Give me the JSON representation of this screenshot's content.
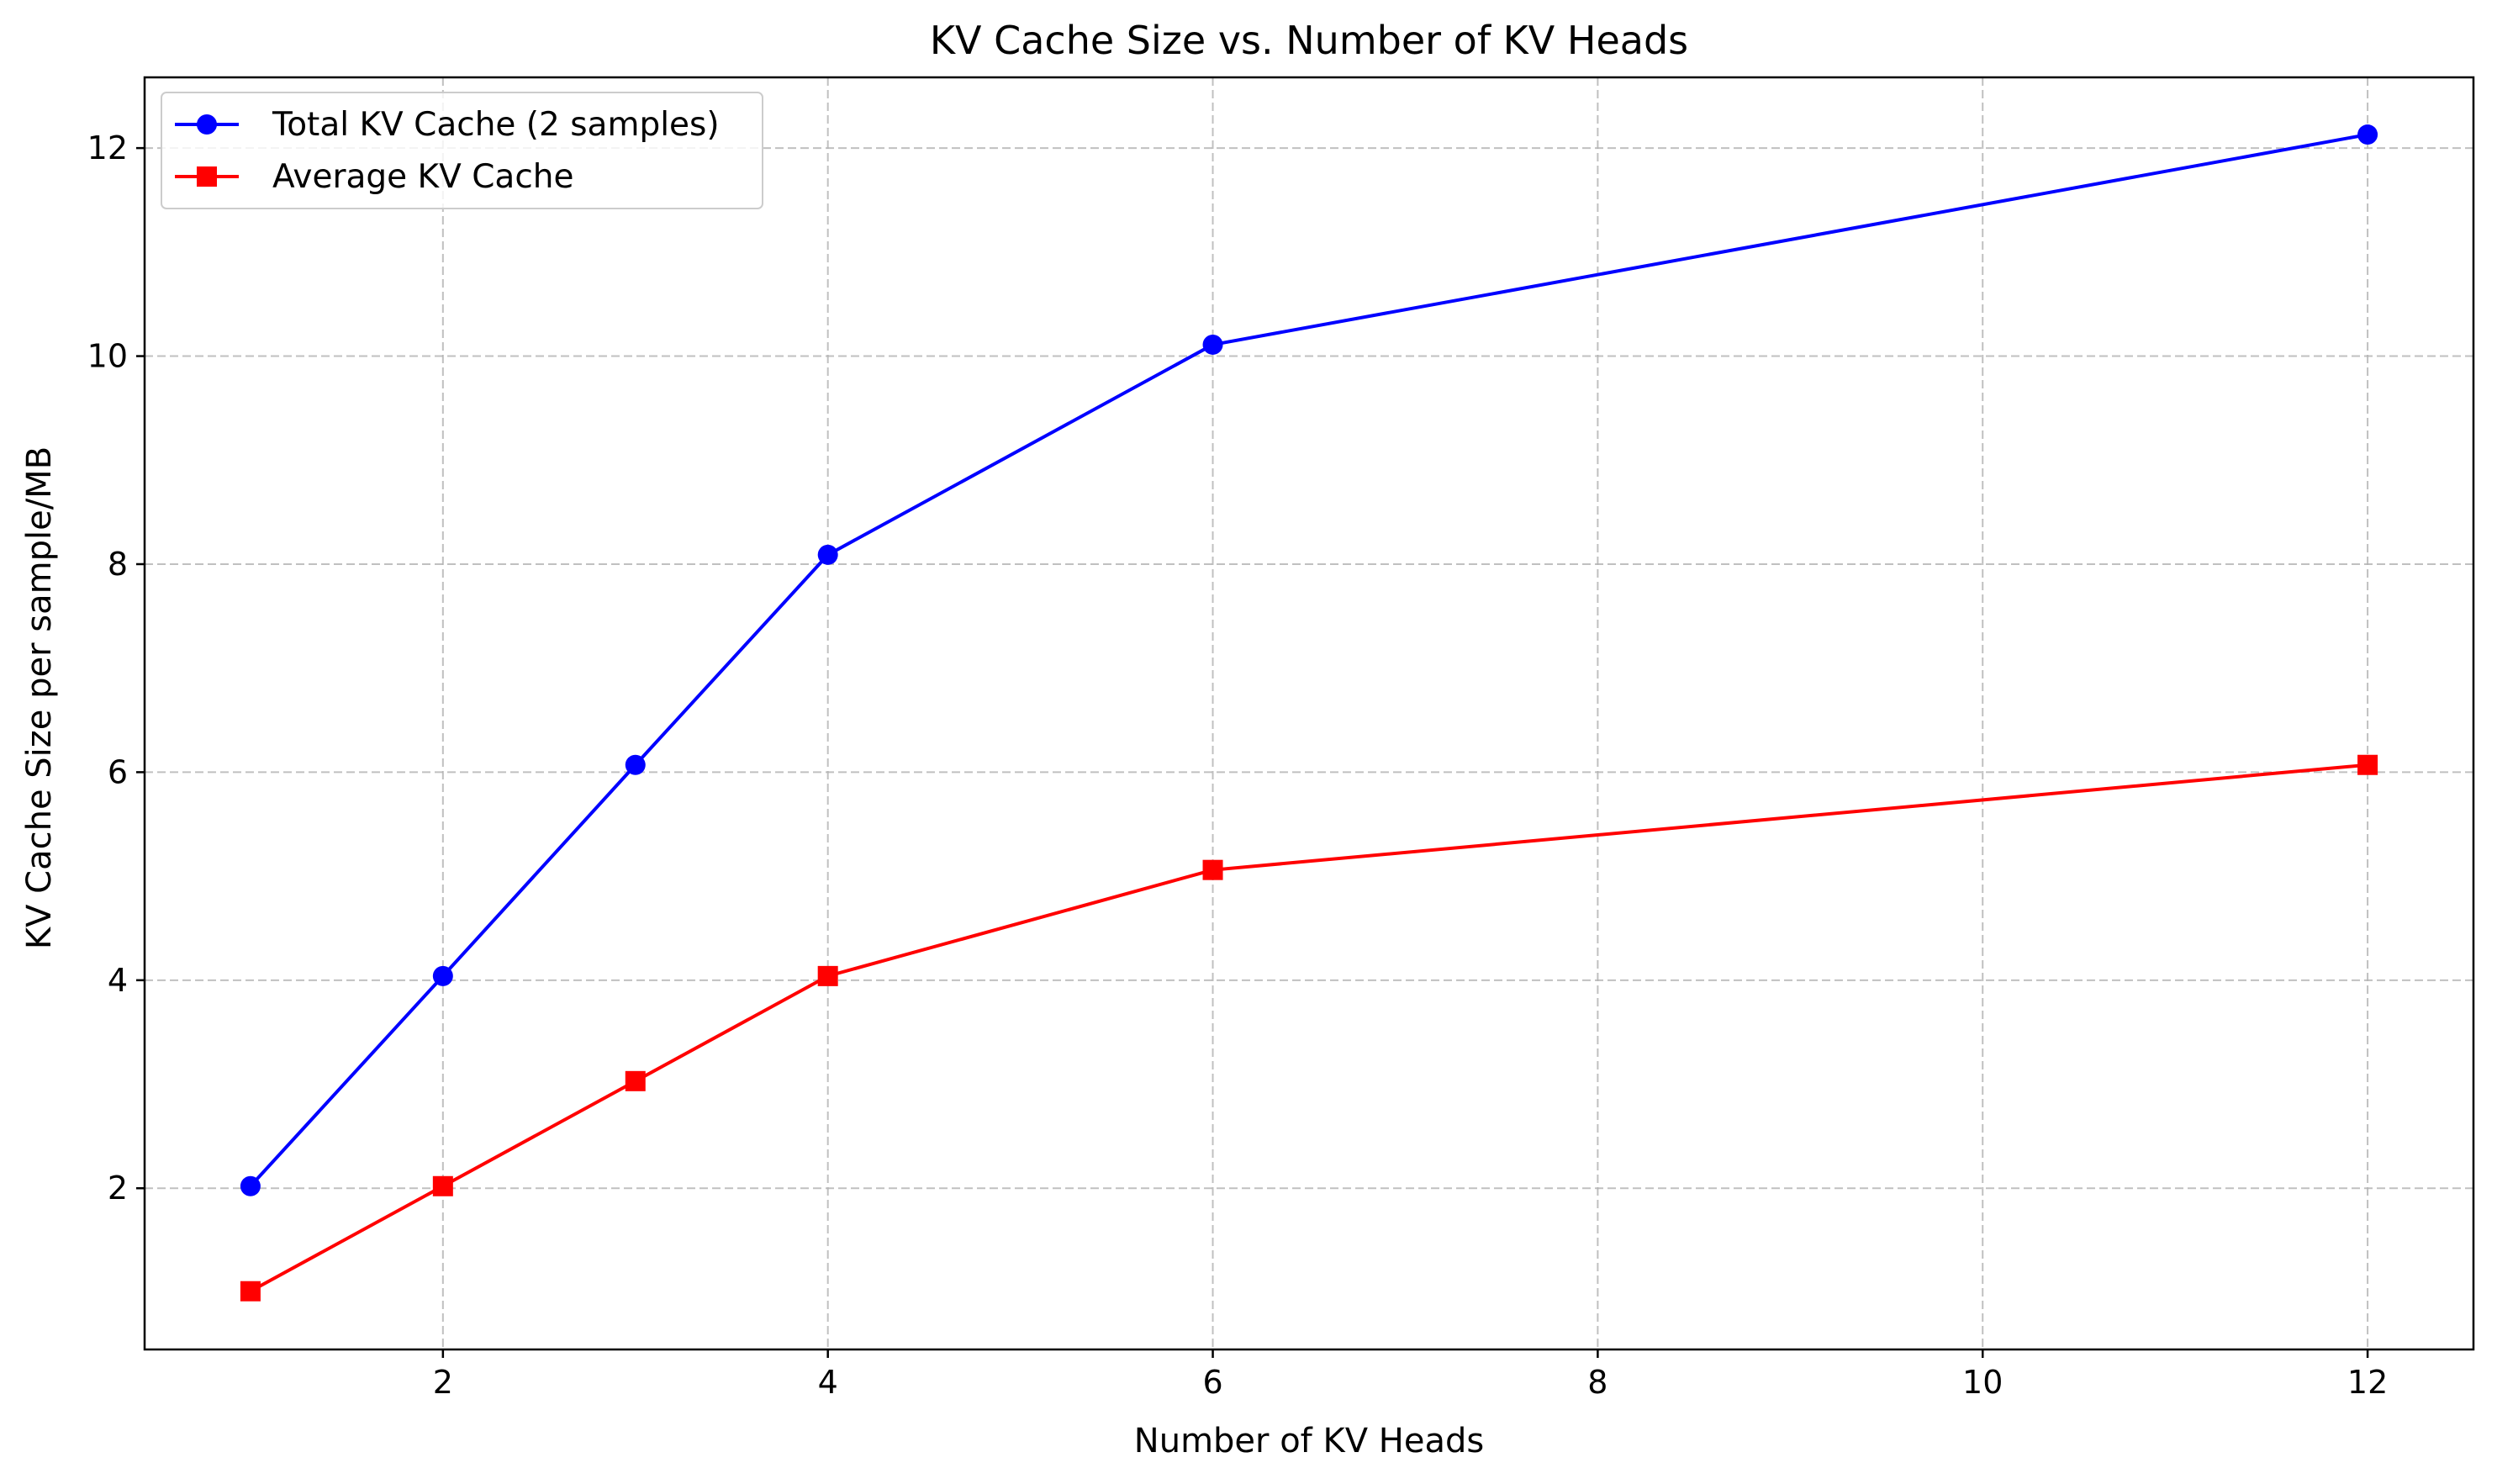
{
  "chart_data": {
    "type": "line",
    "title": "KV Cache Size vs. Number of KV Heads",
    "xlabel": "Number of KV Heads",
    "ylabel": "KV Cache Size per sample/MB",
    "x": [
      1,
      2,
      3,
      4,
      6,
      12
    ],
    "xlim": [
      0.45,
      12.55
    ],
    "ylim": [
      0.45,
      12.68
    ],
    "xticks": [
      2,
      4,
      6,
      8,
      10,
      12
    ],
    "yticks": [
      2,
      4,
      6,
      8,
      10,
      12
    ],
    "grid": true,
    "legend_position": "top-left",
    "series": [
      {
        "name": "Total KV Cache (2 samples)",
        "color": "#0000ff",
        "marker": "circle",
        "values": [
          2.02,
          4.04,
          6.07,
          8.09,
          10.11,
          12.13
        ]
      },
      {
        "name": "Average KV Cache",
        "color": "#ff0000",
        "marker": "square",
        "values": [
          1.01,
          2.02,
          3.03,
          4.04,
          5.06,
          6.07
        ]
      }
    ]
  }
}
